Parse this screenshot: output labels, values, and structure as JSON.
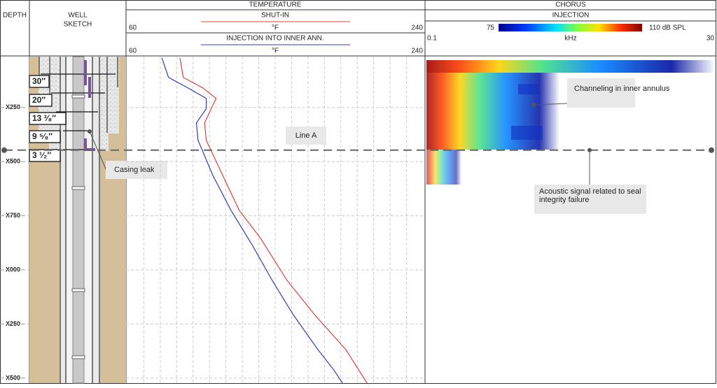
{
  "header": {
    "depth": "DEPTH",
    "well_sketch": [
      "WELL",
      "SKETCH"
    ]
  },
  "depth_axis": {
    "ylim": [
      15,
      1523
    ],
    "ticks": [
      {
        "value": 250,
        "label": "X250"
      },
      {
        "value": 500,
        "label": "X500"
      },
      {
        "value": 750,
        "label": "X750"
      },
      {
        "value": 1000,
        "label": "X000"
      },
      {
        "value": 1250,
        "label": "X250"
      },
      {
        "value": 1500,
        "label": "X500"
      }
    ]
  },
  "well": {
    "casings": [
      "30″",
      "20″",
      "13 ³⁄₈″",
      "9 ⁵⁄₈″",
      "3 ¹⁄₂″"
    ]
  },
  "temperature": {
    "type": "line",
    "title": "TEMPERATURE",
    "xlim": [
      60,
      240
    ],
    "grid": true,
    "series": [
      {
        "name": "SHUT-IN",
        "unit": "°F",
        "color": "#e0413a",
        "depth": [
          21,
          111,
          160,
          208,
          240,
          321,
          401,
          563,
          724,
          853,
          1046,
          1207,
          1368,
          1523
        ],
        "values": [
          92,
          94,
          106,
          114,
          112,
          107,
          108,
          118,
          128,
          141,
          157,
          174,
          193,
          206
        ]
      },
      {
        "name": "INJECTION INTO INNER ANN.",
        "unit": "°F",
        "color": "#2b3fbf",
        "depth": [
          21,
          111,
          160,
          208,
          256,
          321,
          401,
          563,
          724,
          885,
          1046,
          1207,
          1368,
          1465,
          1523
        ],
        "values": [
          81,
          85,
          97,
          108,
          108,
          102,
          103,
          112,
          123,
          136,
          148,
          161,
          176,
          186,
          191
        ]
      }
    ]
  },
  "chorus": {
    "title": "CHORUS",
    "subtitle": "INJECTION",
    "colorbar": {
      "min": 75,
      "max": {
        "value": 110,
        "label": "110 dB SPL"
      }
    },
    "freq_axis": {
      "label": "kHz",
      "xlim": [
        0.1,
        30
      ]
    }
  },
  "annotations": {
    "line_a": {
      "label": "Line A",
      "depth": 447
    },
    "casing_leak": "Casing leak",
    "channeling": "Channeling in inner annulus",
    "acoustic": "Acoustic signal related to seal integrity failure"
  }
}
